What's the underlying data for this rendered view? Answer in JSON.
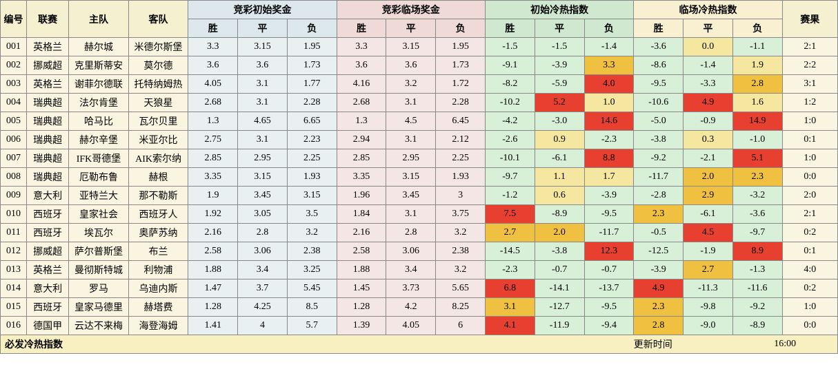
{
  "headers": {
    "id": "编号",
    "league": "联赛",
    "home": "主队",
    "away": "客队",
    "odds_init": "竞彩初始奖金",
    "odds_live": "竞彩临场奖金",
    "hot_init": "初始冷热指数",
    "hot_live": "临场冷热指数",
    "result": "赛果",
    "win": "胜",
    "draw": "平",
    "lose": "负"
  },
  "footer": {
    "title": "必发冷热指数",
    "update_label": "更新时间",
    "update_time": "16:00"
  },
  "style": {
    "colors": {
      "header_base": "#f5f0d0",
      "header_odds_init": "#dce8ec",
      "header_odds_live": "#f0dad8",
      "header_hot_init": "#d0e8d0",
      "header_hot_live": "#f8f0d0",
      "cell_odds_init": "#e8f0f2",
      "cell_odds_live": "#f4e6e4",
      "cell_hot_green": "#d8efd8",
      "cell_hot_yellow": "#f5e6a0",
      "cell_hot_orange": "#f0c040",
      "cell_hot_red": "#e84030",
      "cell_base": "#f9f5e0",
      "border": "#888888",
      "footer_bg": "#f8f0c0"
    },
    "font_family": "SimSun",
    "font_size_pt": 11,
    "hot_thresholds": {
      "red_min": 3.5,
      "orange_min": 2.0,
      "yellow_min": 0.0
    }
  },
  "rows": [
    {
      "id": "001",
      "league": "英格兰",
      "home": "赫尔城",
      "away": "米德尔斯堡",
      "oi": [
        "3.3",
        "3.15",
        "1.95"
      ],
      "ol": [
        "3.3",
        "3.15",
        "1.95"
      ],
      "hi": [
        -1.5,
        -1.5,
        -1.4
      ],
      "hl": [
        -3.6,
        0.0,
        -1.1
      ],
      "res": "2:1"
    },
    {
      "id": "002",
      "league": "挪威超",
      "home": "克里斯蒂安",
      "away": "莫尔德",
      "oi": [
        "3.6",
        "3.6",
        "1.73"
      ],
      "ol": [
        "3.6",
        "3.6",
        "1.73"
      ],
      "hi": [
        -9.1,
        -3.9,
        3.3
      ],
      "hl": [
        -8.6,
        -1.4,
        1.9
      ],
      "res": "2:2"
    },
    {
      "id": "003",
      "league": "英格兰",
      "home": "谢菲尔德联",
      "away": "托特纳姆热",
      "oi": [
        "4.05",
        "3.1",
        "1.77"
      ],
      "ol": [
        "4.16",
        "3.2",
        "1.72"
      ],
      "hi": [
        -8.2,
        -5.9,
        4.0
      ],
      "hl": [
        -9.5,
        -3.3,
        2.8
      ],
      "res": "3:1"
    },
    {
      "id": "004",
      "league": "瑞典超",
      "home": "法尔肯堡",
      "away": "天狼星",
      "oi": [
        "2.68",
        "3.1",
        "2.28"
      ],
      "ol": [
        "2.68",
        "3.1",
        "2.28"
      ],
      "hi": [
        -10.2,
        5.2,
        1.0
      ],
      "hl": [
        -10.6,
        4.9,
        1.6
      ],
      "res": "1:2"
    },
    {
      "id": "005",
      "league": "瑞典超",
      "home": "哈马比",
      "away": "瓦尔贝里",
      "oi": [
        "1.3",
        "4.65",
        "6.65"
      ],
      "ol": [
        "1.3",
        "4.5",
        "6.45"
      ],
      "hi": [
        -4.2,
        -3.0,
        14.6
      ],
      "hl": [
        -5.0,
        -0.9,
        14.9
      ],
      "res": "1:0"
    },
    {
      "id": "006",
      "league": "瑞典超",
      "home": "赫尔辛堡",
      "away": "米亚尔比",
      "oi": [
        "2.75",
        "3.1",
        "2.23"
      ],
      "ol": [
        "2.94",
        "3.1",
        "2.12"
      ],
      "hi": [
        -2.6,
        0.9,
        -2.3
      ],
      "hl": [
        -3.8,
        0.3,
        -1.0
      ],
      "res": "0:1"
    },
    {
      "id": "007",
      "league": "瑞典超",
      "home": "IFK哥德堡",
      "away": "AIK索尔纳",
      "oi": [
        "2.85",
        "2.95",
        "2.25"
      ],
      "ol": [
        "2.85",
        "2.95",
        "2.25"
      ],
      "hi": [
        -10.1,
        -6.1,
        8.8
      ],
      "hl": [
        -9.2,
        -2.1,
        5.1
      ],
      "res": "1:0"
    },
    {
      "id": "008",
      "league": "瑞典超",
      "home": "厄勒布鲁",
      "away": "赫根",
      "oi": [
        "3.35",
        "3.15",
        "1.93"
      ],
      "ol": [
        "3.35",
        "3.15",
        "1.93"
      ],
      "hi": [
        -9.7,
        1.1,
        1.7
      ],
      "hl": [
        -11.7,
        2.0,
        2.3
      ],
      "res": "0:0"
    },
    {
      "id": "009",
      "league": "意大利",
      "home": "亚特兰大",
      "away": "那不勒斯",
      "oi": [
        "1.9",
        "3.45",
        "3.15"
      ],
      "ol": [
        "1.96",
        "3.45",
        "3"
      ],
      "hi": [
        -1.2,
        0.6,
        -3.9
      ],
      "hl": [
        -2.8,
        2.9,
        -3.2
      ],
      "res": "2:0"
    },
    {
      "id": "010",
      "league": "西班牙",
      "home": "皇家社会",
      "away": "西班牙人",
      "oi": [
        "1.92",
        "3.05",
        "3.5"
      ],
      "ol": [
        "1.84",
        "3.1",
        "3.75"
      ],
      "hi": [
        7.5,
        -8.9,
        -9.5
      ],
      "hl": [
        2.3,
        -6.1,
        -3.6
      ],
      "res": "2:1"
    },
    {
      "id": "011",
      "league": "西班牙",
      "home": "埃瓦尔",
      "away": "奥萨苏纳",
      "oi": [
        "2.16",
        "2.8",
        "3.2"
      ],
      "ol": [
        "2.16",
        "2.8",
        "3.2"
      ],
      "hi": [
        2.7,
        2.0,
        -11.7
      ],
      "hl": [
        -0.5,
        4.5,
        -9.7
      ],
      "res": "0:2"
    },
    {
      "id": "012",
      "league": "挪威超",
      "home": "萨尔普斯堡",
      "away": "布兰",
      "oi": [
        "2.58",
        "3.06",
        "2.38"
      ],
      "ol": [
        "2.58",
        "3.06",
        "2.38"
      ],
      "hi": [
        -14.5,
        -3.8,
        12.3
      ],
      "hl": [
        -12.5,
        -1.9,
        8.9
      ],
      "res": "0:1"
    },
    {
      "id": "013",
      "league": "英格兰",
      "home": "曼彻斯特城",
      "away": "利物浦",
      "oi": [
        "1.88",
        "3.4",
        "3.25"
      ],
      "ol": [
        "1.88",
        "3.4",
        "3.2"
      ],
      "hi": [
        -2.3,
        -0.7,
        -0.7
      ],
      "hl": [
        -3.9,
        2.7,
        -1.3
      ],
      "res": "4:0"
    },
    {
      "id": "014",
      "league": "意大利",
      "home": "罗马",
      "away": "乌迪内斯",
      "oi": [
        "1.47",
        "3.7",
        "5.45"
      ],
      "ol": [
        "1.45",
        "3.73",
        "5.65"
      ],
      "hi": [
        6.8,
        -14.1,
        -13.7
      ],
      "hl": [
        4.9,
        -11.3,
        -11.6
      ],
      "res": "0:2"
    },
    {
      "id": "015",
      "league": "西班牙",
      "home": "皇家马德里",
      "away": "赫塔费",
      "oi": [
        "1.28",
        "4.25",
        "8.5"
      ],
      "ol": [
        "1.28",
        "4.2",
        "8.25"
      ],
      "hi": [
        3.1,
        -12.7,
        -9.5
      ],
      "hl": [
        2.3,
        -9.8,
        -9.2
      ],
      "res": "1:0"
    },
    {
      "id": "016",
      "league": "德国甲",
      "home": "云达不来梅",
      "away": "海登海姆",
      "oi": [
        "1.41",
        "4",
        "5.7"
      ],
      "ol": [
        "1.39",
        "4.05",
        "6"
      ],
      "hi": [
        4.1,
        -11.9,
        -9.4
      ],
      "hl": [
        2.8,
        -9.0,
        -8.9
      ],
      "res": "0:0"
    }
  ]
}
